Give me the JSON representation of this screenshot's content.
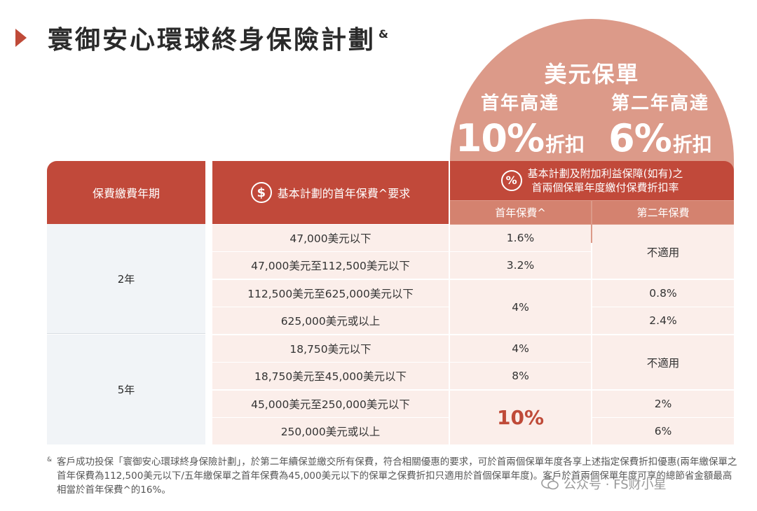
{
  "title": "寰御安心環球終身保險計劃",
  "title_sup": "&",
  "promo": {
    "heading": "美元保單",
    "year1_label": "首年高達",
    "year1_pct": "10%",
    "year2_label": "第二年高達",
    "year2_pct": "6%",
    "discount_word": "折扣"
  },
  "table": {
    "headers": {
      "period": "保費繳費年期",
      "requirement": "基本計劃的首年保費^要求",
      "discount_line1": "基本計劃及附加利益保障(如有)之",
      "discount_line2": "首兩個保單年度繳付保費折扣率",
      "year1": "首年保費^",
      "year2": "第二年保費"
    },
    "period_2": "2年",
    "period_5": "5年",
    "rows": [
      {
        "req": "47,000美元以下"
      },
      {
        "req": "47,000美元至112,500美元以下"
      },
      {
        "req": "112,500美元至625,000美元以下"
      },
      {
        "req": "625,000美元或以上"
      },
      {
        "req": "18,750美元以下"
      },
      {
        "req": "18,750美元至45,000美元以下"
      },
      {
        "req": "45,000美元至250,000美元以下"
      },
      {
        "req": "250,000美元或以上"
      }
    ],
    "y1": {
      "r1": "1.6%",
      "r2": "3.2%",
      "r34": "4%",
      "r5": "4%",
      "r6": "8%",
      "r78": "10%"
    },
    "y2": {
      "r12": "不適用",
      "r3": "0.8%",
      "r4": "2.4%",
      "r56": "不適用",
      "r7": "2%",
      "r8": "6%"
    }
  },
  "footnote": {
    "mark": "&",
    "text": "客戶成功投保「寰御安心環球終身保險計劃」，於第二年續保並繳交所有保費，符合相關優惠的要求，可於首兩個保單年度各享上述指定保費折扣優惠(兩年繳保單之首年保費為112,500美元以下/五年繳保單之首年保費為45,000美元以下的保單之保費折扣只適用於首個保單年度)。客戶於首兩個保單年度可享的總節省金額最高相當於首年保費^的16%。"
  },
  "watermark": "公众号 · FS财小星",
  "colors": {
    "accent": "#c1493a",
    "dome": "#dc9a89",
    "cell": "#fbeeea",
    "period": "#f1f4f7"
  }
}
